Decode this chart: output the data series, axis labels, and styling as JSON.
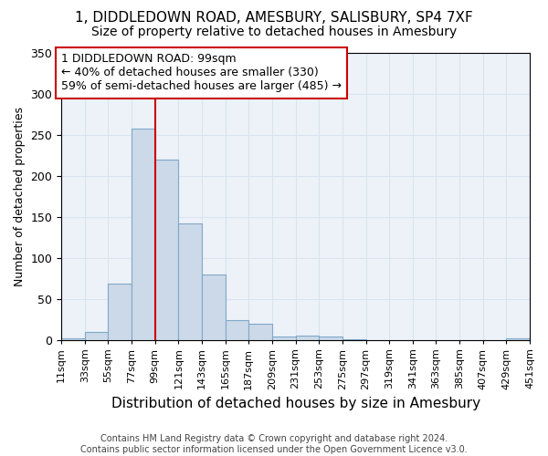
{
  "title1": "1, DIDDLEDOWN ROAD, AMESBURY, SALISBURY, SP4 7XF",
  "title2": "Size of property relative to detached houses in Amesbury",
  "xlabel": "Distribution of detached houses by size in Amesbury",
  "ylabel": "Number of detached properties",
  "footnote": "Contains HM Land Registry data © Crown copyright and database right 2024.\nContains public sector information licensed under the Open Government Licence v3.0.",
  "bin_starts": [
    11,
    33,
    55,
    77,
    99,
    121,
    143,
    165,
    187,
    209,
    231,
    253,
    275,
    297,
    319,
    341,
    363,
    385,
    407,
    429
  ],
  "bin_width": 22,
  "bar_heights": [
    2,
    10,
    68,
    257,
    220,
    142,
    79,
    24,
    20,
    4,
    5,
    4,
    1,
    0,
    0,
    0,
    0,
    0,
    0,
    2
  ],
  "bar_color": "#ccd9e8",
  "bar_edge_color": "#7fa8c9",
  "vline_x": 99,
  "vline_color": "#cc0000",
  "annotation_text": "1 DIDDLEDOWN ROAD: 99sqm\n← 40% of detached houses are smaller (330)\n59% of semi-detached houses are larger (485) →",
  "annotation_box_color": "#ffffff",
  "annotation_box_edge": "#cc0000",
  "ylim": [
    0,
    350
  ],
  "xlim": [
    11,
    451
  ],
  "tick_positions": [
    11,
    33,
    55,
    77,
    99,
    121,
    143,
    165,
    187,
    209,
    231,
    253,
    275,
    297,
    319,
    341,
    363,
    385,
    407,
    429,
    451
  ],
  "tick_labels": [
    "11sqm",
    "33sqm",
    "55sqm",
    "77sqm",
    "99sqm",
    "121sqm",
    "143sqm",
    "165sqm",
    "187sqm",
    "209sqm",
    "231sqm",
    "253sqm",
    "275sqm",
    "297sqm",
    "319sqm",
    "341sqm",
    "363sqm",
    "385sqm",
    "407sqm",
    "429sqm",
    "451sqm"
  ],
  "grid_color": "#d8e4f0",
  "bg_color": "#edf2f8",
  "title1_fontsize": 11,
  "title2_fontsize": 10,
  "xlabel_fontsize": 11,
  "ylabel_fontsize": 9,
  "tick_fontsize": 8,
  "annotation_fontsize": 9,
  "footnote_fontsize": 7
}
